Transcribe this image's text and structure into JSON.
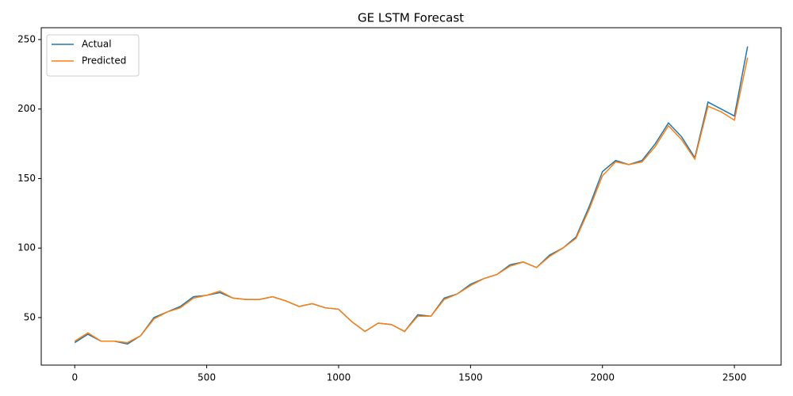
{
  "chart_data": {
    "type": "line",
    "title": "GE LSTM Forecast",
    "x": [
      0,
      50,
      100,
      150,
      200,
      250,
      300,
      350,
      400,
      450,
      500,
      550,
      600,
      650,
      700,
      750,
      800,
      850,
      900,
      950,
      1000,
      1050,
      1100,
      1150,
      1200,
      1250,
      1300,
      1350,
      1400,
      1450,
      1500,
      1550,
      1600,
      1650,
      1700,
      1750,
      1800,
      1850,
      1900,
      1950,
      2000,
      2050,
      2100,
      2150,
      2200,
      2250,
      2300,
      2350,
      2400,
      2450,
      2500,
      2550
    ],
    "series": [
      {
        "name": "Actual",
        "color": "#1f77b4",
        "values": [
          32,
          38,
          33,
          33,
          31,
          37,
          50,
          54,
          58,
          65,
          66,
          68,
          64,
          63,
          63,
          65,
          62,
          58,
          60,
          57,
          56,
          47,
          40,
          46,
          45,
          40,
          52,
          51,
          64,
          67,
          74,
          78,
          81,
          88,
          90,
          86,
          95,
          100,
          108,
          130,
          155,
          163,
          160,
          163,
          175,
          190,
          180,
          165,
          205,
          200,
          195,
          245
        ]
      },
      {
        "name": "Predicted",
        "color": "#ff7f0e",
        "values": [
          33,
          39,
          33,
          33,
          32,
          37,
          49,
          54,
          57,
          64,
          66,
          69,
          64,
          63,
          63,
          65,
          62,
          58,
          60,
          57,
          56,
          47,
          40,
          46,
          45,
          40,
          51,
          51,
          63,
          67,
          73,
          78,
          81,
          87,
          90,
          86,
          94,
          100,
          107,
          128,
          152,
          162,
          160,
          162,
          173,
          188,
          178,
          164,
          202,
          198,
          192,
          237
        ]
      }
    ],
    "xlim": [
      -127,
      2677
    ],
    "ylim": [
      15.8,
      258.5
    ],
    "xticks": [
      0,
      500,
      1000,
      1500,
      2000,
      2500
    ],
    "yticks": [
      50,
      100,
      150,
      200,
      250
    ],
    "legend": "upper left"
  }
}
